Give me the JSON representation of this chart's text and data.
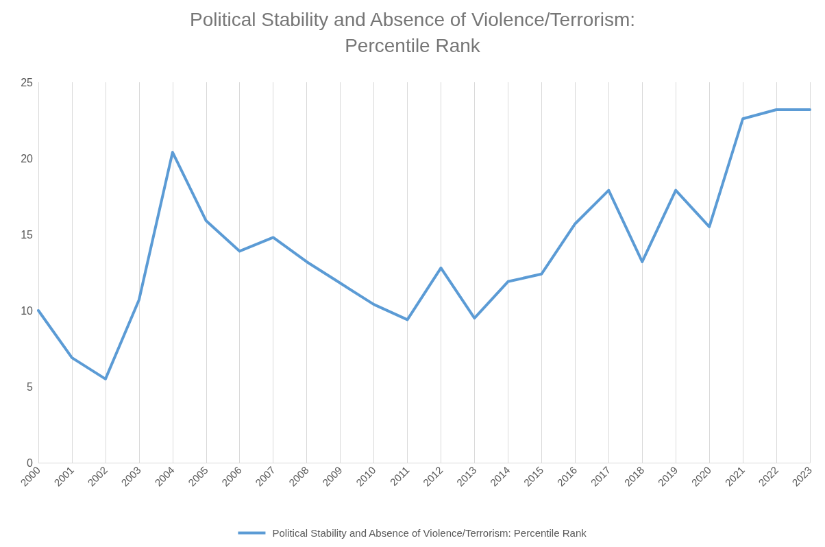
{
  "chart_data": {
    "type": "line",
    "title": "Political Stability and Absence of Violence/Terrorism:\nPercentile Rank",
    "categories": [
      "2000",
      "2001",
      "2002",
      "2003",
      "2004",
      "2005",
      "2006",
      "2007",
      "2008",
      "2009",
      "2010",
      "2011",
      "2012",
      "2013",
      "2014",
      "2015",
      "2016",
      "2017",
      "2018",
      "2019",
      "2020",
      "2021",
      "2022",
      "2023"
    ],
    "series": [
      {
        "name": "Political Stability and Absence of Violence/Terrorism: Percentile Rank",
        "color": "#5b9bd5",
        "values": [
          10.0,
          6.9,
          5.5,
          10.7,
          20.4,
          15.9,
          13.9,
          14.8,
          13.2,
          11.8,
          10.4,
          9.4,
          12.8,
          9.5,
          11.9,
          12.4,
          15.7,
          17.9,
          13.2,
          17.9,
          15.5,
          22.6,
          23.2,
          23.2
        ]
      }
    ],
    "ylim": [
      0,
      25
    ],
    "yticks": [
      0,
      5,
      10,
      15,
      20,
      25
    ],
    "grid": "x",
    "legend": "bottom",
    "marker": "none",
    "line_style": "solid"
  }
}
